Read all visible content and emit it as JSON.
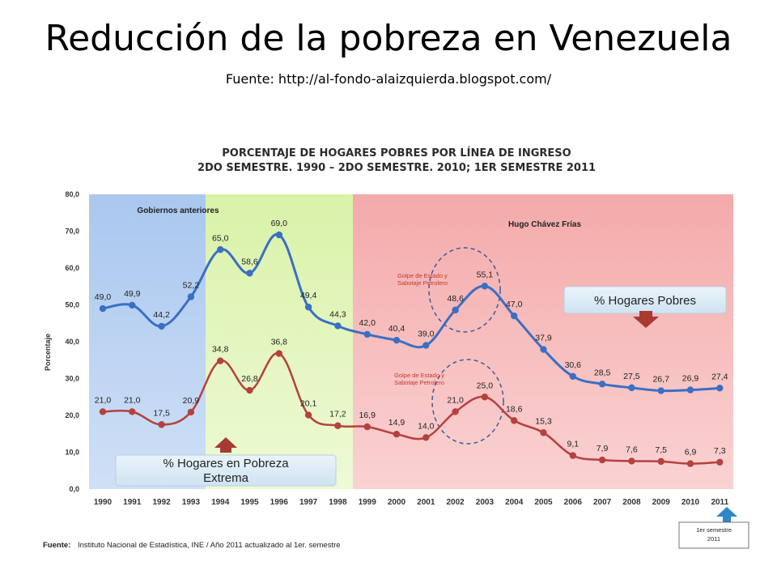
{
  "slide": {
    "title": "Reducción de la pobreza en Venezuela",
    "subtitle": "Fuente: http://al-fondo-alaizquierda.blogspot.com/"
  },
  "chart_data": {
    "type": "line",
    "title_line1": "PORCENTAJE DE HOGARES POBRES POR LÍNEA DE INGRESO",
    "title_line2": "2DO SEMESTRE. 1990 – 2DO SEMESTRE. 2010; 1ER SEMESTRE 2011",
    "ylabel": "Porcentaje",
    "xlabel": "",
    "ylim": [
      0,
      80
    ],
    "yticks": [
      "0,0",
      "10,0",
      "20,0",
      "30,0",
      "40,0",
      "50,0",
      "60,0",
      "70,0",
      "80,0"
    ],
    "categories": [
      "1990",
      "1991",
      "1992",
      "1993",
      "1994",
      "1995",
      "1996",
      "1997",
      "1998",
      "1999",
      "2000",
      "2001",
      "2002",
      "2003",
      "2004",
      "2005",
      "2006",
      "2007",
      "2008",
      "2009",
      "2010",
      "2011"
    ],
    "series": [
      {
        "name": "% Hogares Pobres",
        "color": "#3a6fc4",
        "values": [
          49.0,
          49.9,
          44.2,
          52.2,
          65.0,
          58.6,
          69.0,
          49.4,
          44.3,
          42.0,
          40.4,
          39.0,
          48.6,
          55.1,
          47.0,
          37.9,
          30.6,
          28.5,
          27.5,
          26.7,
          26.9,
          27.4
        ],
        "labels": [
          "49,0",
          "49,9",
          "44,2",
          "52,2",
          "65,0",
          "58,6",
          "69,0",
          "49,4",
          "44,3",
          "42,0",
          "40,4",
          "39,0",
          "48,6",
          "55,1",
          "47,0",
          "37,9",
          "30,6",
          "28,5",
          "27,5",
          "26,7",
          "26,9",
          "27,4"
        ]
      },
      {
        "name": "% Hogares en Pobreza Extrema",
        "color": "#b5413f",
        "values": [
          21.0,
          21.0,
          17.5,
          20.9,
          34.8,
          26.8,
          36.8,
          20.1,
          17.2,
          16.9,
          14.9,
          14.0,
          21.0,
          25.0,
          18.6,
          15.3,
          9.1,
          7.9,
          7.6,
          7.5,
          6.9,
          7.3
        ],
        "labels": [
          "21,0",
          "21,0",
          "17,5",
          "20,9",
          "34,8",
          "26,8",
          "36,8",
          "20,1",
          "17,2",
          "16,9",
          "14,9",
          "14,0",
          "21,0",
          "25,0",
          "18,6",
          "15,3",
          "9,1",
          "7,9",
          "7,6",
          "7,5",
          "6,9",
          "7,3"
        ]
      }
    ],
    "periods": [
      {
        "label": "Gobiernos anteriores",
        "from": "1990",
        "to": "1993",
        "color": "#a9c7ef"
      },
      {
        "label": "",
        "from": "1994",
        "to": "1998",
        "color": "#dff3b8"
      },
      {
        "label": "Hugo Chávez Frías",
        "from": "1999",
        "to": "2011",
        "color": "#f6b8b8"
      }
    ],
    "annotations": [
      {
        "text_line1": "Golpe de Estado y",
        "text_line2": "Sabotaje Petrolero",
        "series": 0,
        "year": "2003"
      },
      {
        "text_line1": "Golpe de Estado y",
        "text_line2": "Sabotaje Petrolero",
        "series": 1,
        "year": "2003"
      }
    ],
    "legend": {
      "poor_label": "% Hogares Pobres",
      "extreme_line1": "% Hogares en Pobreza",
      "extreme_line2": "Extrema"
    },
    "note_line1": "1er semestre",
    "note_line2": "2011",
    "source_prefix": "Fuente:",
    "source_text": "Instituto Nacional de Estadística, INE / Año 2011 actualizado al 1er. semestre",
    "grid": false
  }
}
